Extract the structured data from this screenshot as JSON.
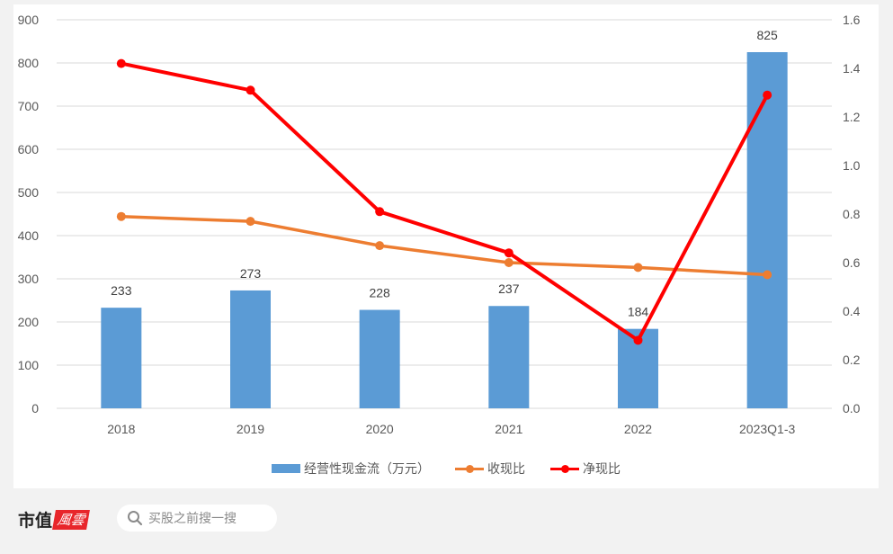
{
  "chart_data": {
    "type": "bar+line",
    "title": "",
    "categories": [
      "2018",
      "2019",
      "2020",
      "2021",
      "2022",
      "2023Q1-3"
    ],
    "series": [
      {
        "name": "经营性现金流（万元）",
        "type": "bar",
        "axis": "left",
        "color": "#5b9bd5",
        "values": [
          233,
          273,
          228,
          237,
          184,
          825
        ]
      },
      {
        "name": "收现比",
        "type": "line",
        "axis": "right",
        "color": "#ed7d31",
        "values": [
          0.79,
          0.77,
          0.67,
          0.6,
          0.58,
          0.55
        ]
      },
      {
        "name": "净现比",
        "type": "line",
        "axis": "right",
        "color": "#ff0000",
        "values": [
          1.42,
          1.31,
          0.81,
          0.64,
          0.28,
          1.29
        ]
      }
    ],
    "left_axis": {
      "ticks": [
        "0",
        "100",
        "200",
        "300",
        "400",
        "500",
        "600",
        "700",
        "800",
        "900"
      ],
      "ylim": [
        0,
        900
      ]
    },
    "right_axis": {
      "ticks": [
        "0.0",
        "0.2",
        "0.4",
        "0.6",
        "0.8",
        "1.0",
        "1.2",
        "1.4",
        "1.6"
      ],
      "ylim": [
        0,
        1.6
      ]
    },
    "data_labels": [
      "233",
      "273",
      "228",
      "237",
      "184",
      "825"
    ],
    "grid": true,
    "legend_position": "bottom",
    "xlabel": "",
    "ylabel": ""
  },
  "legend": {
    "bar_label": "经营性现金流（万元）",
    "line1_label": "收现比",
    "line2_label": "净现比"
  },
  "footer": {
    "brand_text": "市值",
    "brand_mark": "風雲",
    "search_placeholder": "买股之前搜一搜"
  },
  "colors": {
    "bar": "#5b9bd5",
    "line1": "#ed7d31",
    "line2": "#ff0000",
    "grid": "#d9d9d9"
  }
}
